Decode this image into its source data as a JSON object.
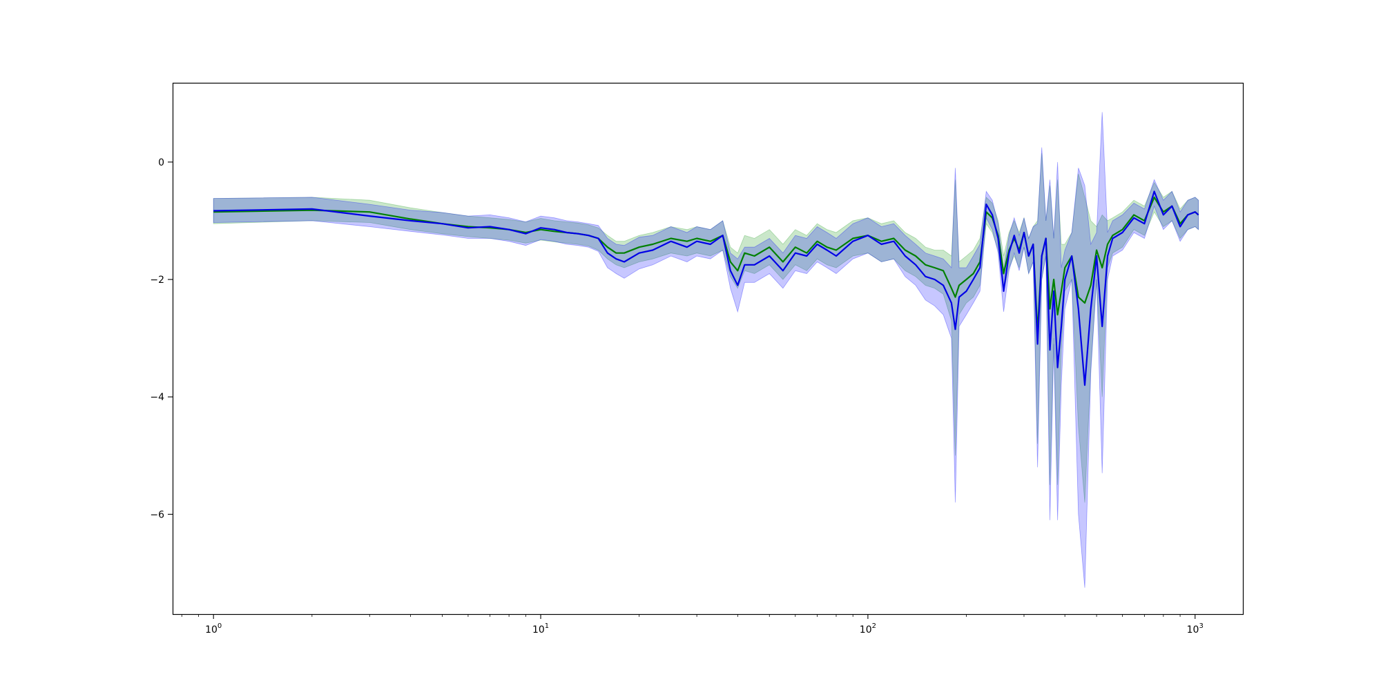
{
  "chart_data": {
    "type": "line",
    "xscale": "log",
    "xlim": [
      0.75,
      1400
    ],
    "ylim": [
      -7.7,
      1.35
    ],
    "grid": false,
    "legend": "none",
    "x_ticks": [
      {
        "value": 1,
        "base": "10",
        "exp": "0"
      },
      {
        "value": 10,
        "base": "10",
        "exp": "1"
      },
      {
        "value": 100,
        "base": "10",
        "exp": "2"
      },
      {
        "value": 1000,
        "base": "10",
        "exp": "3"
      }
    ],
    "y_ticks": [
      {
        "value": 0,
        "label": "0"
      },
      {
        "value": -2,
        "label": "−2"
      },
      {
        "value": -4,
        "label": "−4"
      },
      {
        "value": -6,
        "label": "−6"
      }
    ],
    "series": [
      {
        "color": "#008000",
        "band_color": "#2ca02c",
        "band_opacity": 0.25,
        "x": [
          1,
          2,
          3,
          4,
          5,
          6,
          7,
          8,
          9,
          10,
          11,
          12,
          13,
          14,
          15,
          16,
          17,
          18,
          20,
          22,
          25,
          28,
          30,
          33,
          36,
          38,
          40,
          42,
          45,
          50,
          55,
          60,
          65,
          70,
          75,
          80,
          90,
          100,
          110,
          120,
          130,
          140,
          150,
          160,
          170,
          180,
          185,
          190,
          200,
          210,
          220,
          230,
          240,
          250,
          260,
          270,
          280,
          290,
          300,
          310,
          320,
          330,
          340,
          350,
          360,
          370,
          380,
          390,
          400,
          420,
          440,
          460,
          480,
          500,
          520,
          540,
          560,
          600,
          650,
          700,
          750,
          800,
          850,
          900,
          950,
          1000,
          1024
        ],
        "y": [
          -0.85,
          -0.82,
          -0.85,
          -0.97,
          -1.05,
          -1.1,
          -1.12,
          -1.15,
          -1.2,
          -1.15,
          -1.18,
          -1.2,
          -1.22,
          -1.25,
          -1.3,
          -1.45,
          -1.55,
          -1.55,
          -1.45,
          -1.4,
          -1.3,
          -1.35,
          -1.3,
          -1.35,
          -1.25,
          -1.7,
          -1.85,
          -1.55,
          -1.6,
          -1.45,
          -1.7,
          -1.45,
          -1.55,
          -1.35,
          -1.45,
          -1.5,
          -1.3,
          -1.25,
          -1.35,
          -1.3,
          -1.5,
          -1.6,
          -1.75,
          -1.8,
          -1.85,
          -2.15,
          -2.3,
          -2.1,
          -2.0,
          -1.9,
          -1.7,
          -0.85,
          -0.95,
          -1.25,
          -1.9,
          -1.5,
          -1.3,
          -1.5,
          -1.2,
          -1.6,
          -1.4,
          -2.9,
          -1.6,
          -1.3,
          -2.5,
          -2.0,
          -2.6,
          -2.2,
          -1.8,
          -1.6,
          -2.3,
          -2.4,
          -2.1,
          -1.5,
          -1.8,
          -1.4,
          -1.25,
          -1.15,
          -0.9,
          -1.0,
          -0.6,
          -0.85,
          -0.75,
          -1.05,
          -0.9,
          -0.85,
          -0.9
        ],
        "lower": [
          -1.05,
          -1.0,
          -1.03,
          -1.15,
          -1.22,
          -1.27,
          -1.3,
          -1.33,
          -1.38,
          -1.33,
          -1.36,
          -1.38,
          -1.4,
          -1.43,
          -1.5,
          -1.65,
          -1.75,
          -1.8,
          -1.7,
          -1.65,
          -1.55,
          -1.6,
          -1.55,
          -1.6,
          -1.5,
          -1.95,
          -2.15,
          -1.85,
          -1.9,
          -1.75,
          -2.0,
          -1.75,
          -1.85,
          -1.65,
          -1.75,
          -1.8,
          -1.6,
          -1.55,
          -1.7,
          -1.65,
          -1.85,
          -1.95,
          -2.1,
          -2.15,
          -2.25,
          -2.7,
          -5.0,
          -2.6,
          -2.4,
          -2.3,
          -2.1,
          -1.05,
          -1.2,
          -1.5,
          -2.2,
          -1.8,
          -1.6,
          -1.8,
          -1.45,
          -1.9,
          -1.7,
          -4.8,
          -2.0,
          -1.6,
          -5.5,
          -3.0,
          -5.5,
          -3.2,
          -2.2,
          -2.0,
          -4.5,
          -5.8,
          -3.5,
          -2.0,
          -4.0,
          -1.8,
          -1.55,
          -1.45,
          -1.15,
          -1.25,
          -0.85,
          -1.1,
          -1.0,
          -1.3,
          -1.15,
          -1.1,
          -1.15
        ],
        "upper": [
          -0.62,
          -0.6,
          -0.65,
          -0.78,
          -0.86,
          -0.92,
          -0.95,
          -0.98,
          -1.02,
          -0.96,
          -1.0,
          -1.02,
          -1.04,
          -1.07,
          -1.12,
          -1.25,
          -1.35,
          -1.35,
          -1.25,
          -1.2,
          -1.1,
          -1.15,
          -1.1,
          -1.15,
          -1.0,
          -1.45,
          -1.55,
          -1.25,
          -1.3,
          -1.15,
          -1.4,
          -1.15,
          -1.25,
          -1.05,
          -1.15,
          -1.2,
          -1.0,
          -0.95,
          -1.05,
          -1.0,
          -1.2,
          -1.3,
          -1.45,
          -1.5,
          -1.5,
          -1.6,
          -0.3,
          -1.7,
          -1.6,
          -1.5,
          -1.3,
          -0.6,
          -0.7,
          -1.0,
          -1.6,
          -1.2,
          -1.0,
          -1.2,
          -0.95,
          -1.3,
          -1.1,
          -1.0,
          0.15,
          -1.0,
          -0.4,
          -1.3,
          -0.3,
          -1.4,
          -1.4,
          -1.2,
          -0.2,
          -0.6,
          -1.0,
          -1.1,
          -0.9,
          -1.0,
          -0.95,
          -0.85,
          -0.65,
          -0.75,
          -0.35,
          -0.6,
          -0.5,
          -0.8,
          -0.65,
          -0.6,
          -0.65
        ]
      },
      {
        "color": "#0000e6",
        "band_color": "#0000ff",
        "band_opacity": 0.22,
        "x": [
          1,
          2,
          3,
          4,
          5,
          6,
          7,
          8,
          9,
          10,
          11,
          12,
          13,
          14,
          15,
          16,
          17,
          18,
          20,
          22,
          25,
          28,
          30,
          33,
          36,
          38,
          40,
          42,
          45,
          50,
          55,
          60,
          65,
          70,
          75,
          80,
          90,
          100,
          110,
          120,
          130,
          140,
          150,
          160,
          170,
          180,
          185,
          190,
          200,
          210,
          220,
          230,
          240,
          250,
          260,
          270,
          280,
          290,
          300,
          310,
          320,
          330,
          340,
          350,
          360,
          370,
          380,
          390,
          400,
          420,
          440,
          460,
          480,
          500,
          520,
          540,
          560,
          600,
          650,
          700,
          750,
          800,
          850,
          900,
          950,
          1000,
          1024
        ],
        "y": [
          -0.83,
          -0.8,
          -0.92,
          -1.0,
          -1.05,
          -1.12,
          -1.1,
          -1.15,
          -1.22,
          -1.12,
          -1.15,
          -1.2,
          -1.22,
          -1.25,
          -1.3,
          -1.55,
          -1.65,
          -1.7,
          -1.55,
          -1.5,
          -1.35,
          -1.45,
          -1.35,
          -1.4,
          -1.25,
          -1.85,
          -2.1,
          -1.75,
          -1.75,
          -1.6,
          -1.85,
          -1.55,
          -1.6,
          -1.4,
          -1.5,
          -1.6,
          -1.35,
          -1.25,
          -1.4,
          -1.35,
          -1.6,
          -1.75,
          -1.95,
          -2.0,
          -2.1,
          -2.4,
          -2.85,
          -2.3,
          -2.2,
          -2.0,
          -1.8,
          -0.72,
          -0.9,
          -1.3,
          -2.2,
          -1.55,
          -1.25,
          -1.55,
          -1.2,
          -1.6,
          -1.4,
          -3.1,
          -1.6,
          -1.3,
          -3.2,
          -2.2,
          -3.5,
          -2.8,
          -2.0,
          -1.6,
          -2.5,
          -3.8,
          -2.5,
          -1.6,
          -2.8,
          -1.6,
          -1.3,
          -1.2,
          -0.95,
          -1.05,
          -0.5,
          -0.9,
          -0.75,
          -1.1,
          -0.9,
          -0.85,
          -0.9
        ],
        "lower": [
          -1.03,
          -1.0,
          -1.1,
          -1.18,
          -1.24,
          -1.3,
          -1.3,
          -1.35,
          -1.42,
          -1.32,
          -1.35,
          -1.4,
          -1.42,
          -1.45,
          -1.52,
          -1.8,
          -1.9,
          -1.98,
          -1.82,
          -1.75,
          -1.6,
          -1.7,
          -1.6,
          -1.65,
          -1.5,
          -2.15,
          -2.55,
          -2.05,
          -2.05,
          -1.9,
          -2.15,
          -1.85,
          -1.9,
          -1.7,
          -1.8,
          -1.9,
          -1.65,
          -1.55,
          -1.7,
          -1.65,
          -1.95,
          -2.1,
          -2.35,
          -2.45,
          -2.6,
          -3.0,
          -5.8,
          -2.8,
          -2.6,
          -2.4,
          -2.2,
          -0.95,
          -1.15,
          -1.55,
          -2.55,
          -1.85,
          -1.55,
          -1.85,
          -1.45,
          -1.9,
          -1.7,
          -5.2,
          -2.0,
          -1.6,
          -6.1,
          -3.1,
          -6.1,
          -3.8,
          -2.5,
          -2.0,
          -6.0,
          -7.25,
          -3.6,
          -2.0,
          -5.3,
          -2.0,
          -1.6,
          -1.5,
          -1.2,
          -1.3,
          -0.75,
          -1.15,
          -1.0,
          -1.35,
          -1.15,
          -1.1,
          -1.15
        ],
        "upper": [
          -0.62,
          -0.6,
          -0.72,
          -0.82,
          -0.86,
          -0.92,
          -0.9,
          -0.95,
          -1.02,
          -0.92,
          -0.95,
          -1.0,
          -1.02,
          -1.05,
          -1.08,
          -1.3,
          -1.4,
          -1.42,
          -1.28,
          -1.25,
          -1.1,
          -1.2,
          -1.1,
          -1.15,
          -1.0,
          -1.55,
          -1.65,
          -1.45,
          -1.45,
          -1.3,
          -1.55,
          -1.25,
          -1.3,
          -1.1,
          -1.2,
          -1.3,
          -1.05,
          -0.95,
          -1.1,
          -1.05,
          -1.25,
          -1.4,
          -1.55,
          -1.6,
          -1.65,
          -1.8,
          -0.1,
          -1.8,
          -1.8,
          -1.6,
          -1.4,
          -0.5,
          -0.65,
          -1.05,
          -1.85,
          -1.25,
          -0.95,
          -1.25,
          -0.95,
          -1.3,
          -1.1,
          -1.05,
          0.25,
          -1.0,
          -0.3,
          -1.3,
          0.0,
          -1.8,
          -1.5,
          -1.2,
          -0.1,
          -0.4,
          -1.4,
          -1.2,
          0.85,
          -1.2,
          -1.0,
          -0.9,
          -0.7,
          -0.8,
          -0.3,
          -0.65,
          -0.5,
          -0.85,
          -0.65,
          -0.6,
          -0.65
        ]
      }
    ]
  }
}
